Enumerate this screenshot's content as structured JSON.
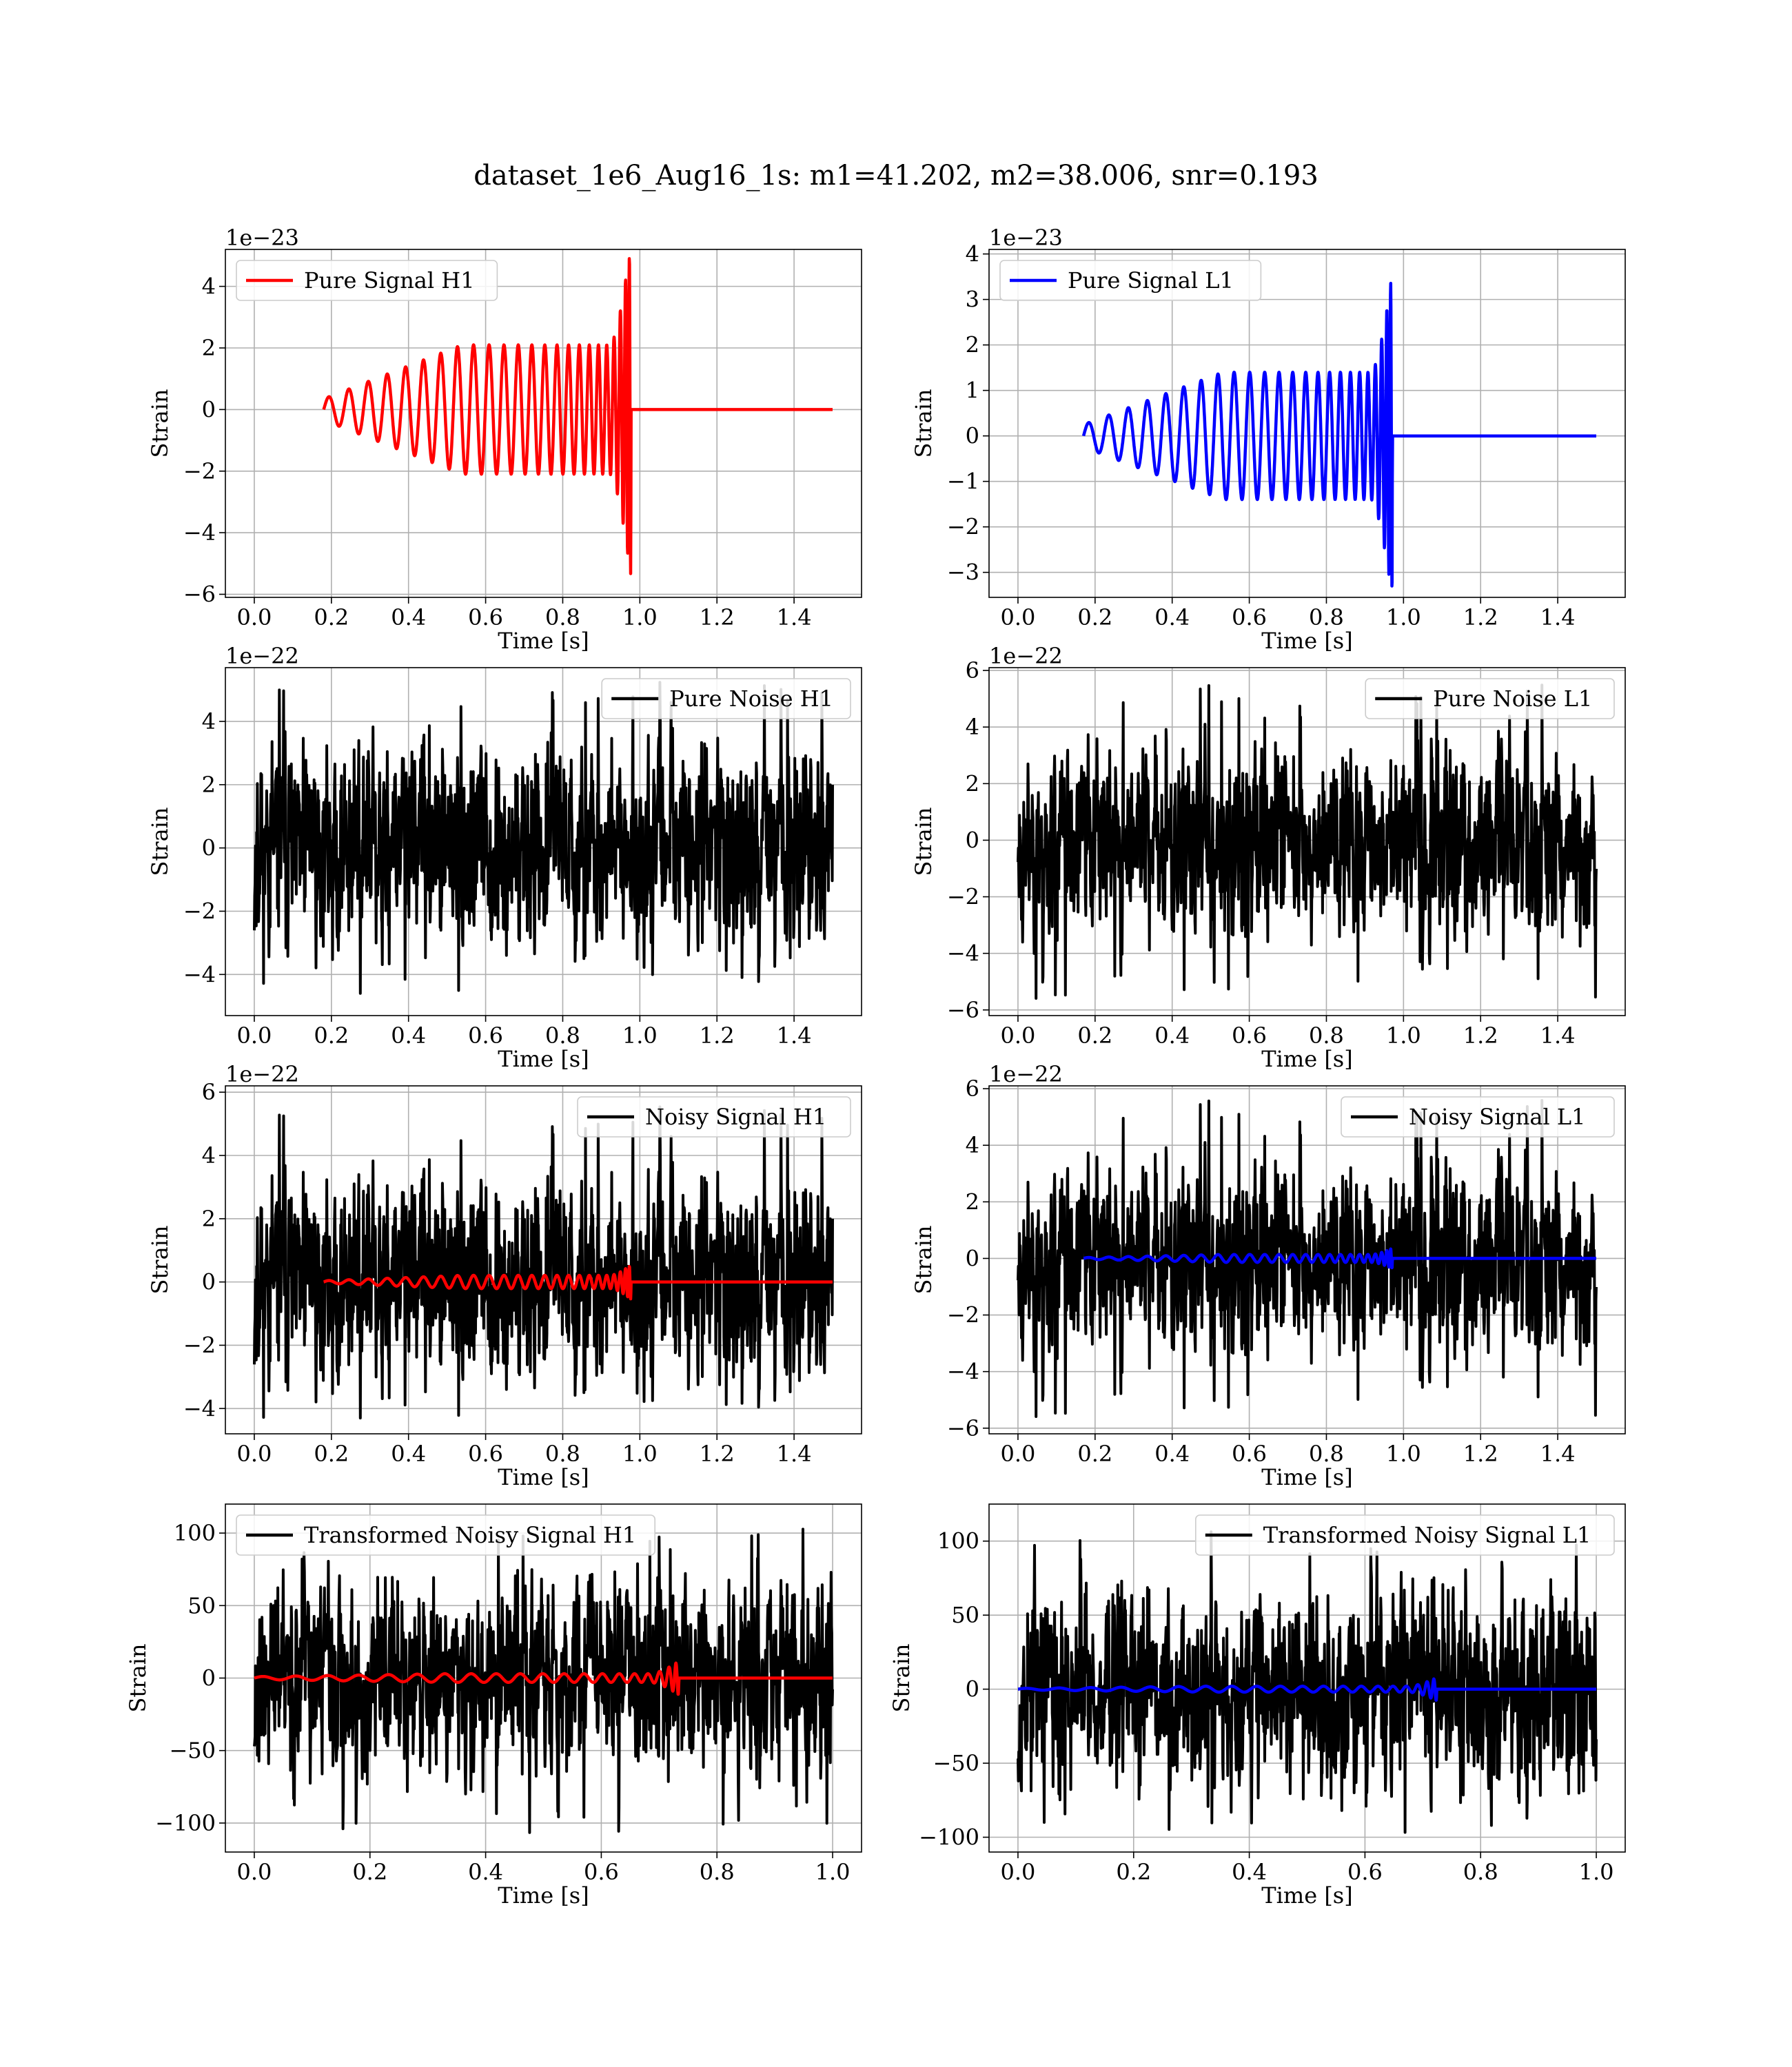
{
  "figure": {
    "title": "dataset_1e6_Aug16_1s: m1=41.202, m2=38.006, snr=0.193"
  },
  "colors": {
    "red": "#ff0000",
    "blue": "#0000ff",
    "black": "#000000",
    "grid": "#b0b0b0"
  },
  "chart_data": [
    {
      "type": "line",
      "detector": "H1",
      "xlabel": "Time [s]",
      "ylabel": "Strain",
      "offset_text": "1e−23",
      "xlim": [
        -0.075,
        1.575
      ],
      "ylim": [
        -6.1,
        5.2
      ],
      "xticks": [
        0.0,
        0.2,
        0.4,
        0.6,
        0.8,
        1.0,
        1.2,
        1.4
      ],
      "yticks": [
        -6,
        -4,
        -2,
        0,
        2,
        4
      ],
      "legend": {
        "placement": "upper left"
      },
      "series": [
        {
          "name": "Pure Signal H1",
          "color": "#ff0000",
          "kind": "chirp",
          "t_start": 0.18,
          "t_merger": 0.978,
          "t_end": 1.5,
          "peak": 4.9,
          "trough": -5.6,
          "max_mid": 2.1,
          "early_amp": 0.35,
          "cycles": 24
        }
      ]
    },
    {
      "type": "line",
      "detector": "L1",
      "xlabel": "Time [s]",
      "ylabel": "Strain",
      "offset_text": "1e−23",
      "xlim": [
        -0.075,
        1.575
      ],
      "ylim": [
        -3.55,
        4.1
      ],
      "xticks": [
        0.0,
        0.2,
        0.4,
        0.6,
        0.8,
        1.0,
        1.2,
        1.4
      ],
      "yticks": [
        -3,
        -2,
        -1,
        0,
        1,
        2,
        3,
        4
      ],
      "legend": {
        "placement": "upper left"
      },
      "series": [
        {
          "name": "Pure Signal L1",
          "color": "#0000ff",
          "kind": "chirp",
          "t_start": 0.17,
          "t_merger": 0.972,
          "t_end": 1.5,
          "peak": 3.7,
          "trough": -3.3,
          "max_mid": 1.4,
          "early_amp": 0.25,
          "cycles": 24
        }
      ]
    },
    {
      "type": "line",
      "detector": "H1",
      "xlabel": "Time [s]",
      "ylabel": "Strain",
      "offset_text": "1e−22",
      "xlim": [
        -0.075,
        1.575
      ],
      "ylim": [
        -5.3,
        5.7
      ],
      "xticks": [
        0.0,
        0.2,
        0.4,
        0.6,
        0.8,
        1.0,
        1.2,
        1.4
      ],
      "yticks": [
        -4,
        -2,
        0,
        2,
        4
      ],
      "legend": {
        "placement": "upper right"
      },
      "series": [
        {
          "name": "Pure Noise H1",
          "color": "#000000",
          "kind": "noise",
          "t_start": 0.0,
          "t_end": 1.5,
          "sigma": 1.45,
          "max": 5.3,
          "min": -4.7,
          "seed": 11
        }
      ]
    },
    {
      "type": "line",
      "detector": "L1",
      "xlabel": "Time [s]",
      "ylabel": "Strain",
      "offset_text": "1e−22",
      "xlim": [
        -0.075,
        1.575
      ],
      "ylim": [
        -6.2,
        6.1
      ],
      "xticks": [
        0.0,
        0.2,
        0.4,
        0.6,
        0.8,
        1.0,
        1.2,
        1.4
      ],
      "yticks": [
        -6,
        -4,
        -2,
        0,
        2,
        4,
        6
      ],
      "legend": {
        "placement": "upper right"
      },
      "series": [
        {
          "name": "Pure Noise L1",
          "color": "#000000",
          "kind": "noise",
          "t_start": 0.0,
          "t_end": 1.5,
          "sigma": 1.5,
          "max": 5.5,
          "min": -5.6,
          "seed": 23
        }
      ]
    },
    {
      "type": "line",
      "detector": "H1",
      "xlabel": "Time [s]",
      "ylabel": "Strain",
      "offset_text": "1e−22",
      "xlim": [
        -0.075,
        1.575
      ],
      "ylim": [
        -4.8,
        6.2
      ],
      "xticks": [
        0.0,
        0.2,
        0.4,
        0.6,
        0.8,
        1.0,
        1.2,
        1.4
      ],
      "yticks": [
        -4,
        -2,
        0,
        2,
        4,
        6
      ],
      "legend": {
        "placement": "upper right"
      },
      "series": [
        {
          "name": "Noisy Signal H1",
          "color": "#000000",
          "kind": "noise",
          "t_start": 0.0,
          "t_end": 1.5,
          "sigma": 1.45,
          "max": 5.6,
          "min": -4.4,
          "seed": 11
        },
        {
          "color": "#ff0000",
          "kind": "chirp",
          "t_start": 0.18,
          "t_merger": 0.978,
          "t_end": 1.5,
          "peak": 0.49,
          "trough": -0.56,
          "max_mid": 0.21,
          "early_amp": 0.04,
          "cycles": 24
        }
      ]
    },
    {
      "type": "line",
      "detector": "L1",
      "xlabel": "Time [s]",
      "ylabel": "Strain",
      "offset_text": "1e−22",
      "xlim": [
        -0.075,
        1.575
      ],
      "ylim": [
        -6.2,
        6.1
      ],
      "xticks": [
        0.0,
        0.2,
        0.4,
        0.6,
        0.8,
        1.0,
        1.2,
        1.4
      ],
      "yticks": [
        -6,
        -4,
        -2,
        0,
        2,
        4,
        6
      ],
      "legend": {
        "placement": "upper right"
      },
      "series": [
        {
          "name": "Noisy Signal L1",
          "color": "#000000",
          "kind": "noise",
          "t_start": 0.0,
          "t_end": 1.5,
          "sigma": 1.5,
          "max": 5.6,
          "min": -5.6,
          "seed": 23
        },
        {
          "color": "#0000ff",
          "kind": "chirp",
          "t_start": 0.17,
          "t_merger": 0.972,
          "t_end": 1.5,
          "peak": 0.37,
          "trough": -0.33,
          "max_mid": 0.14,
          "early_amp": 0.03,
          "cycles": 24
        }
      ]
    },
    {
      "type": "line",
      "detector": "H1",
      "xlabel": "Time [s]",
      "ylabel": "Strain",
      "offset_text": "",
      "xlim": [
        -0.05,
        1.05
      ],
      "ylim": [
        -120,
        120
      ],
      "xticks": [
        0.0,
        0.2,
        0.4,
        0.6,
        0.8,
        1.0
      ],
      "yticks": [
        -100,
        -50,
        0,
        50,
        100
      ],
      "legend": {
        "placement": "upper left"
      },
      "series": [
        {
          "name": "Transformed Noisy Signal H1",
          "color": "#000000",
          "kind": "noise",
          "t_start": 0.0,
          "t_end": 1.0,
          "sigma": 30,
          "max": 104,
          "min": -108,
          "seed": 37
        },
        {
          "color": "#ff0000",
          "kind": "chirp",
          "t_start": 0.0,
          "t_merger": 0.735,
          "t_end": 1.0,
          "peak": 12,
          "trough": -12,
          "max_mid": 3,
          "early_amp": 1,
          "cycles": 20
        }
      ]
    },
    {
      "type": "line",
      "detector": "L1",
      "xlabel": "Time [s]",
      "ylabel": "Strain",
      "offset_text": "",
      "xlim": [
        -0.05,
        1.05
      ],
      "ylim": [
        -110,
        125
      ],
      "xticks": [
        0.0,
        0.2,
        0.4,
        0.6,
        0.8,
        1.0
      ],
      "yticks": [
        -100,
        -50,
        0,
        50,
        100
      ],
      "legend": {
        "placement": "upper right"
      },
      "series": [
        {
          "name": "Transformed Noisy Signal L1",
          "color": "#000000",
          "kind": "noise",
          "t_start": 0.0,
          "t_end": 1.0,
          "sigma": 30,
          "max": 107,
          "min": -100,
          "seed": 53
        },
        {
          "color": "#0000ff",
          "kind": "chirp",
          "t_start": 0.0,
          "t_merger": 0.725,
          "t_end": 1.0,
          "peak": 8,
          "trough": -8,
          "max_mid": 2,
          "early_amp": 0.5,
          "cycles": 20
        }
      ]
    }
  ]
}
